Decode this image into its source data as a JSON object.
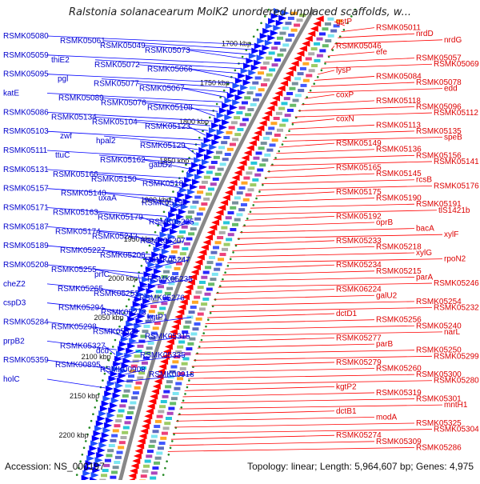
{
  "title": "Ralstonia solanacearum MolK2 unordered unplaced scaffolds, w...",
  "footer": {
    "accession": "Accession: NS_000197",
    "summary": "Topology: linear; Length: 5,964,607 bp; Genes: 4,975"
  },
  "colors": {
    "left_labels": "#0000cc",
    "right_labels": "#dd0000",
    "backbone": "#888888",
    "ticks": "#228822"
  },
  "scale_ticks": [
    "1700 kbp",
    "1750 kbp",
    "1800 kbp",
    "1850 kbp",
    "1900 kbp",
    "1950 kbp",
    "2000 kbp",
    "2050 kbp",
    "2100 kbp",
    "2150 kbp",
    "2200 kbp"
  ],
  "left_genes": [
    "RSMK05080",
    "RSMK05061",
    "RSMK05049",
    "RSMK05073",
    "RSMK05059",
    "thiE2",
    "RSMK05072",
    "RSMK05066",
    "RSMK05095",
    "pgl",
    "RSMK05077",
    "RSMK05067",
    "katE",
    "RSMK05089",
    "RSMK05076",
    "RSMK05108",
    "RSMK05086",
    "RSMK05134",
    "RSMK05104",
    "RSMK05123",
    "RSMK05103",
    "zwf",
    "hpal2",
    "RSMK05129",
    "RSMK05111",
    "ttuC",
    "RSMK05162",
    "gabD2",
    "RSMK05131",
    "RSMK05166",
    "RSMK05150",
    "RSMK05181",
    "RSMK05157",
    "RSMK05140",
    "uxaA",
    "RSMK05193",
    "RSMK05171",
    "RSMK05163",
    "RSMK05179",
    "RSMK05225",
    "RSMK05187",
    "RSMK05174",
    "RSMK05242",
    "RSMK05207",
    "RSMK05189",
    "RSMK05227",
    "RSMK05206",
    "RSMK05247",
    "RSMK05208",
    "RSMK05255",
    "prfC",
    "RSMK05235",
    "cheZ2",
    "RSMK05265",
    "RSMK05253",
    "RSMK05276",
    "cspD3",
    "RSMK05294",
    "RSMK05273",
    "kgtP1",
    "RSMK05284",
    "RSMK05298",
    "RSMK05329",
    "RSMK05315",
    "prpB2",
    "RSMK05327",
    "dcd",
    "RSMK05335",
    "RSMK05359",
    "RSMK00895",
    "RSMK00908",
    "RSMK00918",
    "holC"
  ],
  "right_genes": [
    "gstP",
    "RSMK05011",
    "nrdD",
    "nrdG",
    "RSMK05046",
    "efe",
    "RSMK05057",
    "RSMK05069",
    "lysP",
    "RSMK05084",
    "RSMK05078",
    "edd",
    "coxP",
    "RSMK05118",
    "RSMK05096",
    "RSMK05112",
    "coxN",
    "RSMK05113",
    "RSMK05135",
    "speB",
    "RSMK05149",
    "RSMK05136",
    "RSMK05156",
    "RSMK05141",
    "RSMK05165",
    "RSMK05145",
    "rcsB",
    "RSMK05176",
    "RSMK05175",
    "RSMK05190",
    "RSMK05191",
    "tlS1421b",
    "RSMK05192",
    "oprB",
    "bacA",
    "xylF",
    "RSMK05233",
    "RSMK05218",
    "xylG",
    "rpoN2",
    "RSMK05234",
    "RSMK05215",
    "parA",
    "RSMK05246",
    "RSMK06224",
    "galU2",
    "RSMK05254",
    "RSMK05232",
    "dctD1",
    "RSMK05256",
    "RSMK05240",
    "narL",
    "RSMK05277",
    "parB",
    "RSMK05250",
    "RSMK05299",
    "RSMK05279",
    "RSMK05260",
    "RSMK05300",
    "RSMK05280",
    "kgtP2",
    "RSMK05319",
    "RSMK05301",
    "mntH1",
    "dctB1",
    "modA",
    "RSMK05325",
    "RSMK05304",
    "RSMK05274",
    "RSMK05309",
    "RSMK05286"
  ]
}
